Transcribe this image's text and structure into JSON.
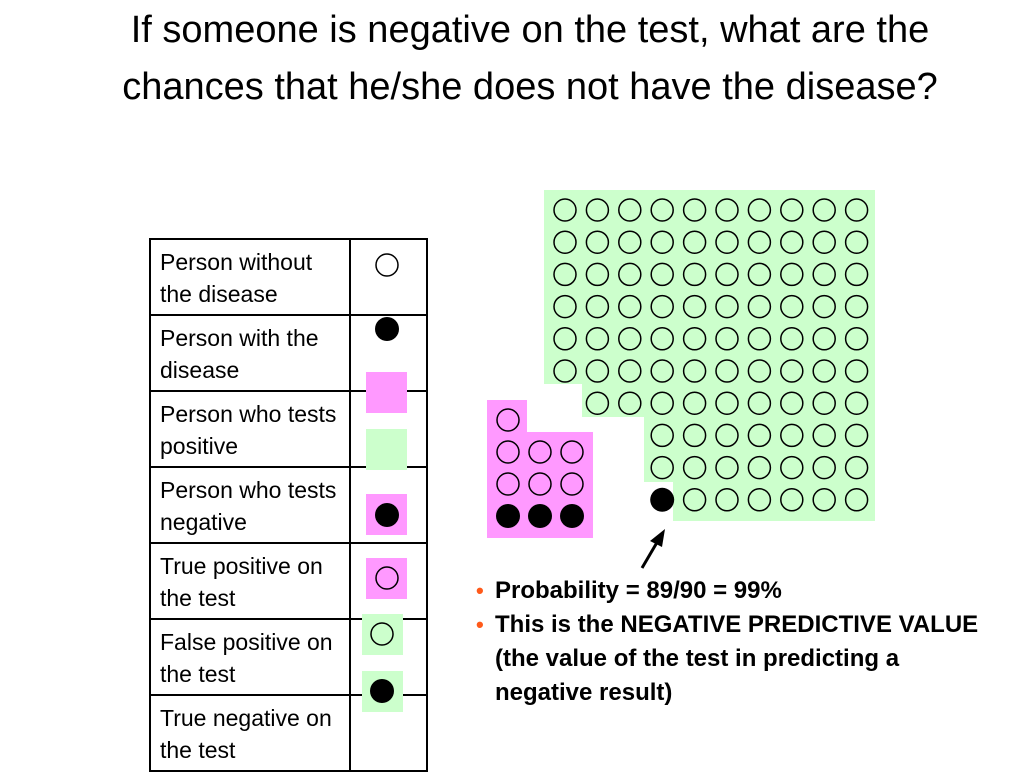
{
  "slide": {
    "title": "If someone is negative on the test, what are the chances that he/she does not have the disease?",
    "legend": [
      {
        "label": "Person without the disease",
        "symbol": "open-circle-icon"
      },
      {
        "label": "Person with the disease",
        "symbol": "filled-circle-icon"
      },
      {
        "label": "Person who tests positive",
        "symbol": "pink-square-icon"
      },
      {
        "label": "Person who tests negative",
        "symbol": "green-square-icon"
      },
      {
        "label": "True positive on the test",
        "symbol": "filled-circle-on-pink-icon"
      },
      {
        "label": "False positive on the test",
        "symbol": "open-circle-on-pink-icon"
      },
      {
        "label": "True negative on the test",
        "symbol": "open-circle-on-green-icon"
      },
      {
        "label": "",
        "symbol": "filled-circle-on-green-icon"
      }
    ],
    "bullets": [
      "Probability = 89/90 = 99%",
      "This is the NEGATIVE PREDICTIVE VALUE (the value of the test in predicting a negative result)"
    ],
    "colors": {
      "positive_bg": "#ff99ff",
      "negative_bg": "#ccffcc",
      "bullet": "#ff5a1a"
    },
    "population": {
      "test_negative": {
        "without_disease": 89,
        "with_disease": 1,
        "total": 90
      },
      "test_positive": {
        "without_disease": 7,
        "with_disease": 3,
        "total": 10
      }
    }
  }
}
